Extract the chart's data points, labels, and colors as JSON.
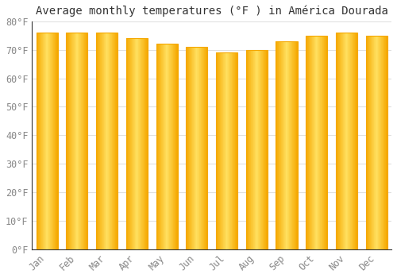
{
  "title": "Average monthly temperatures (°F ) in América Dourada",
  "months": [
    "Jan",
    "Feb",
    "Mar",
    "Apr",
    "May",
    "Jun",
    "Jul",
    "Aug",
    "Sep",
    "Oct",
    "Nov",
    "Dec"
  ],
  "values": [
    76,
    76,
    76,
    74,
    72,
    71,
    69,
    70,
    73,
    75,
    76,
    75
  ],
  "bar_color_edge": "#F5A800",
  "bar_color_center": "#FFD966",
  "background_color": "#FFFFFF",
  "grid_color": "#E0E0E0",
  "ylim": [
    0,
    80
  ],
  "yticks": [
    0,
    10,
    20,
    30,
    40,
    50,
    60,
    70,
    80
  ],
  "ytick_labels": [
    "0°F",
    "10°F",
    "20°F",
    "30°F",
    "40°F",
    "50°F",
    "60°F",
    "70°F",
    "80°F"
  ],
  "title_fontsize": 10,
  "tick_fontsize": 8.5,
  "tick_color": "#888888",
  "figsize": [
    5.0,
    3.5
  ],
  "dpi": 100,
  "bar_width": 0.72
}
